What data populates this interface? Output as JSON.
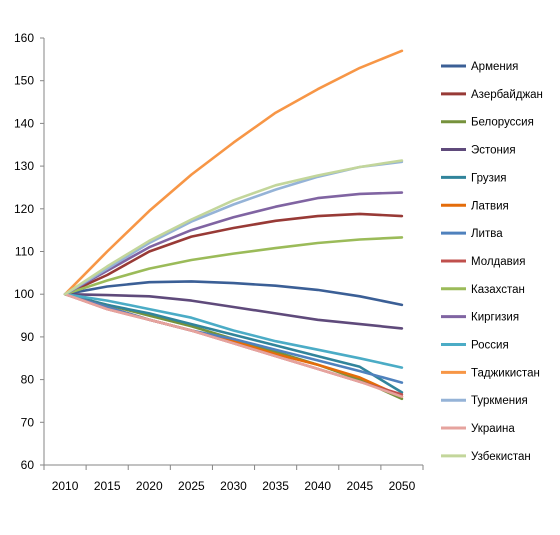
{
  "chart_data": {
    "type": "line",
    "title": "",
    "xlabel": "",
    "ylabel": "",
    "x": [
      2010,
      2015,
      2020,
      2025,
      2030,
      2035,
      2040,
      2045,
      2050
    ],
    "ylim": [
      60,
      160
    ],
    "yticks": [
      60,
      70,
      80,
      90,
      100,
      110,
      120,
      130,
      140,
      150,
      160
    ],
    "grid": false,
    "legend_position": "right",
    "series": [
      {
        "name": "Армения",
        "color": "#3b5f96",
        "values": [
          100,
          101.8,
          102.8,
          103.0,
          102.6,
          102.0,
          101.0,
          99.5,
          97.5
        ]
      },
      {
        "name": "Азербайджан",
        "color": "#983a36",
        "values": [
          100,
          104.5,
          110.0,
          113.5,
          115.5,
          117.2,
          118.3,
          118.8,
          118.3
        ]
      },
      {
        "name": "Белоруссия",
        "color": "#76923c",
        "values": [
          100,
          97.5,
          95.0,
          92.5,
          89.5,
          86.5,
          83.5,
          80.0,
          75.5
        ]
      },
      {
        "name": "Эстония",
        "color": "#5f4a7b",
        "values": [
          100,
          99.8,
          99.5,
          98.5,
          97.0,
          95.5,
          94.0,
          93.0,
          92.0
        ]
      },
      {
        "name": "Грузия",
        "color": "#31849b",
        "values": [
          100,
          97.5,
          95.5,
          93.0,
          90.5,
          88.0,
          85.5,
          83.0,
          77.0
        ]
      },
      {
        "name": "Латвия",
        "color": "#e46c0a",
        "values": [
          100,
          97.0,
          94.0,
          91.5,
          89.0,
          86.0,
          83.5,
          80.5,
          76.0
        ]
      },
      {
        "name": "Литва",
        "color": "#4f81bd",
        "values": [
          100,
          97.0,
          94.0,
          91.5,
          89.5,
          87.0,
          84.5,
          82.0,
          79.3
        ]
      },
      {
        "name": "Молдавия",
        "color": "#c0504d",
        "values": [
          100,
          96.5,
          94.0,
          91.5,
          88.5,
          85.5,
          82.5,
          79.5,
          76.5
        ]
      },
      {
        "name": "Казахстан",
        "color": "#9bbb59",
        "values": [
          100,
          103.2,
          106.0,
          108.0,
          109.5,
          110.8,
          112.0,
          112.8,
          113.3
        ]
      },
      {
        "name": "Киргизия",
        "color": "#8064a2",
        "values": [
          100,
          105.5,
          111.0,
          115.0,
          118.0,
          120.5,
          122.5,
          123.5,
          123.8
        ]
      },
      {
        "name": "Россия",
        "color": "#4bacc6",
        "values": [
          100,
          98.5,
          96.5,
          94.5,
          91.5,
          89.0,
          87.0,
          85.0,
          82.8
        ]
      },
      {
        "name": "Таджикистан",
        "color": "#f79646",
        "values": [
          100,
          110.0,
          119.5,
          128.0,
          135.5,
          142.5,
          148.0,
          153.0,
          157.0
        ]
      },
      {
        "name": "Туркмения",
        "color": "#95b3d7",
        "values": [
          100,
          106.0,
          112.0,
          117.0,
          121.0,
          124.5,
          127.5,
          129.8,
          131.0
        ]
      },
      {
        "name": "Украина",
        "color": "#e6a39e",
        "values": [
          100,
          96.5,
          94.0,
          91.5,
          88.5,
          85.5,
          82.5,
          79.5,
          76.0
        ]
      },
      {
        "name": "Узбекистан",
        "color": "#c3d69b",
        "values": [
          100,
          106.5,
          112.5,
          117.5,
          122.0,
          125.5,
          127.8,
          129.8,
          131.3
        ]
      }
    ]
  }
}
